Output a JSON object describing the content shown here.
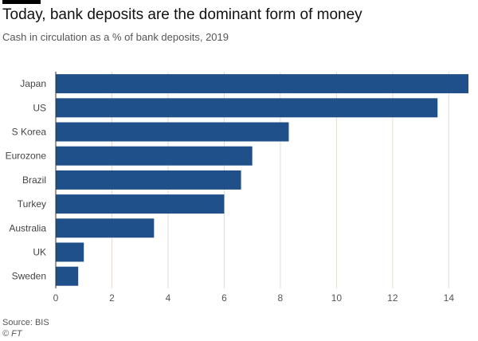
{
  "header": {
    "title": "Today, bank deposits are the dominant form of money",
    "subtitle": "Cash in circulation as a % of bank deposits, 2019"
  },
  "footer": {
    "source": "Source: BIS",
    "credit": "© FT"
  },
  "chart_data": {
    "type": "bar",
    "orientation": "horizontal",
    "categories": [
      "Japan",
      "US",
      "S Korea",
      "Eurozone",
      "Brazil",
      "Turkey",
      "Australia",
      "UK",
      "Sweden"
    ],
    "values": [
      14.7,
      13.6,
      8.3,
      7.0,
      6.6,
      6.0,
      3.5,
      1.0,
      0.8
    ],
    "xlim": [
      0,
      14.7
    ],
    "xticks": [
      0,
      2,
      4,
      6,
      8,
      10,
      12,
      14
    ],
    "grid": "vertical",
    "colors": {
      "bar": "#1f5089",
      "grid": "#e3dcd3",
      "axis": "#333333"
    }
  }
}
